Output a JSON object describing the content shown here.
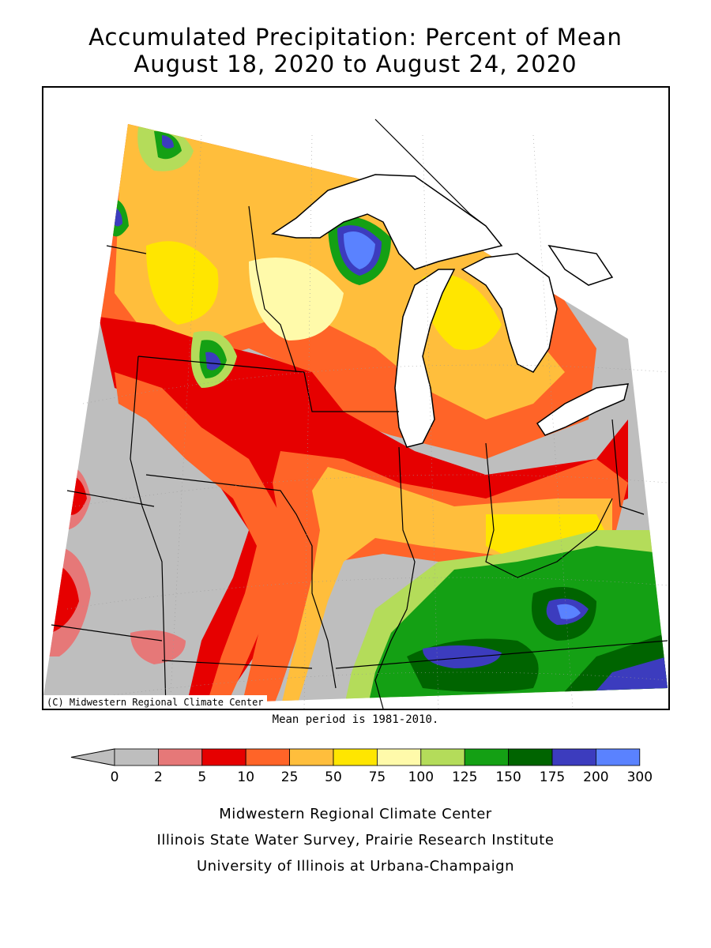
{
  "title": {
    "line1": "Accumulated Precipitation: Percent of Mean",
    "line2": "August 18, 2020 to August 24, 2020"
  },
  "map": {
    "credit_box": "(C) Midwestern Regional Climate Center",
    "mean_note": "Mean period is 1981-2010.",
    "lake_color": "#ffffff",
    "line_color": "#000000"
  },
  "legend": {
    "ticks": [
      "0",
      "2",
      "5",
      "10",
      "25",
      "50",
      "75",
      "100",
      "125",
      "150",
      "175",
      "200",
      "300"
    ],
    "colors": [
      "#bebebe",
      "#bebebe",
      "#e67878",
      "#e60000",
      "#ff6428",
      "#ffbe3c",
      "#ffe600",
      "#fffaaa",
      "#b4dc5a",
      "#14a014",
      "#006400",
      "#3c3cbe",
      "#5a82ff"
    ]
  },
  "credits": {
    "line1": "Midwestern Regional Climate Center",
    "line2": "Illinois State Water Survey, Prairie Research Institute",
    "line3": "University of Illinois at Urbana-Champaign"
  }
}
